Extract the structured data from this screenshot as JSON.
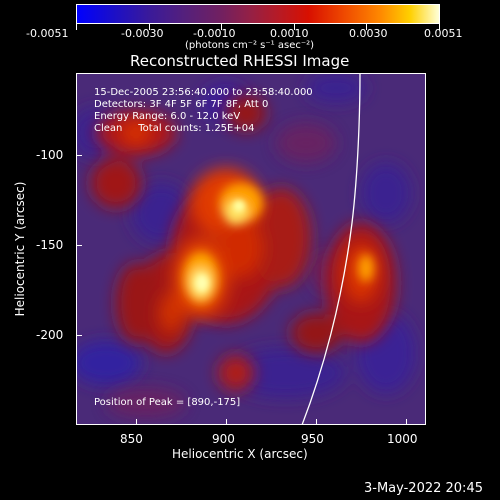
{
  "colorbar": {
    "tick_labels": [
      "-0.0051",
      "-0.0030",
      "-0.0010",
      "0.0010",
      "0.0030",
      "0.0051"
    ],
    "unit_label": "(photons cm⁻² s⁻¹ asec⁻²)"
  },
  "title": "Reconstructed RHESSI Image",
  "info": {
    "line1": "15-Dec-2005 23:56:40.000 to 23:58:40.000",
    "line2": "Detectors: 3F 4F 5F 6F 7F 8F, Att 0",
    "line3": "Energy Range: 6.0 - 12.0 keV",
    "line4": "Clean     Total counts: 1.25E+04",
    "peak": "Position of Peak = [890,-175]"
  },
  "x_axis": {
    "label": "Heliocentric X (arcsec)",
    "ticks": [
      "850",
      "900",
      "950",
      "1000"
    ]
  },
  "y_axis": {
    "label": "Heliocentric Y (arcsec)",
    "ticks": [
      "-100",
      "-150",
      "-200"
    ]
  },
  "timestamp": "3-May-2022 20:45",
  "colors": {
    "background": "#000000",
    "text": "#ffffff",
    "limb": "#ffffff",
    "negative_flux": "#4a2a78",
    "peak_flux": "#ffff90"
  }
}
